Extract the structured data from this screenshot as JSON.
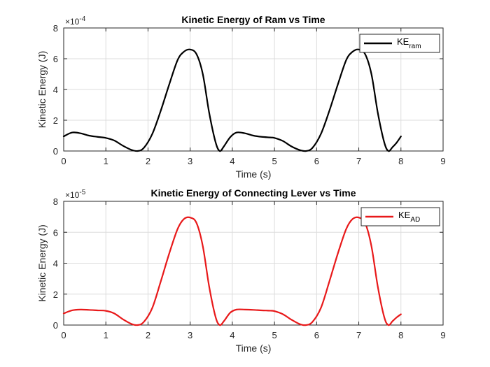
{
  "chart_data": [
    {
      "type": "line",
      "title": "Kinetic Energy of Ram vs Time",
      "xlabel": "Time (s)",
      "ylabel": "Kinetic Energy (J)",
      "exponent_label": {
        "base": "×10",
        "power": "-4"
      },
      "xlim": [
        0,
        9
      ],
      "ylim": [
        0,
        8
      ],
      "y_scale": "1e-4",
      "xticks": [
        "0",
        "1",
        "2",
        "3",
        "4",
        "5",
        "6",
        "7",
        "8",
        "9"
      ],
      "yticks": [
        "0",
        "2",
        "4",
        "6",
        "8"
      ],
      "grid": true,
      "legend_position": "top-right",
      "color": "#000000",
      "series": [
        {
          "name": "KE",
          "name_sub": "ram",
          "x": [
            0,
            0.2,
            0.4,
            0.6,
            0.8,
            1.0,
            1.2,
            1.4,
            1.6,
            1.75,
            1.9,
            2.1,
            2.3,
            2.5,
            2.7,
            2.85,
            3.0,
            3.15,
            3.3,
            3.45,
            3.6,
            3.7,
            3.8,
            3.95,
            4.1,
            4.3,
            4.5,
            4.7,
            4.9,
            5.0,
            5.2,
            5.4,
            5.6,
            5.75,
            5.9,
            6.1,
            6.3,
            6.5,
            6.7,
            6.85,
            7.0,
            7.15,
            7.3,
            7.45,
            7.6,
            7.7,
            7.8,
            7.9,
            8.0
          ],
          "values": [
            0.95,
            1.2,
            1.15,
            1.0,
            0.92,
            0.85,
            0.68,
            0.35,
            0.08,
            0.0,
            0.2,
            1.1,
            2.6,
            4.3,
            5.9,
            6.45,
            6.6,
            6.3,
            5.0,
            2.5,
            0.6,
            0.0,
            0.3,
            0.9,
            1.2,
            1.15,
            1.0,
            0.92,
            0.88,
            0.85,
            0.65,
            0.3,
            0.06,
            0.0,
            0.2,
            1.1,
            2.6,
            4.3,
            5.9,
            6.45,
            6.6,
            6.3,
            5.0,
            2.5,
            0.6,
            0.0,
            0.25,
            0.55,
            0.95
          ]
        }
      ]
    },
    {
      "type": "line",
      "title": "Kinetic Energy of Connecting Lever vs Time",
      "xlabel": "Time (s)",
      "ylabel": "Kinetic Energy (J)",
      "exponent_label": {
        "base": "×10",
        "power": "-5"
      },
      "xlim": [
        0,
        9
      ],
      "ylim": [
        0,
        8
      ],
      "y_scale": "1e-5",
      "xticks": [
        "0",
        "1",
        "2",
        "3",
        "4",
        "5",
        "6",
        "7",
        "8",
        "9"
      ],
      "yticks": [
        "0",
        "2",
        "4",
        "6",
        "8"
      ],
      "grid": true,
      "legend_position": "top-right",
      "color": "#e8191a",
      "series": [
        {
          "name": "KE",
          "name_sub": "AD",
          "x": [
            0,
            0.2,
            0.4,
            0.6,
            0.8,
            1.0,
            1.2,
            1.4,
            1.6,
            1.75,
            1.9,
            2.1,
            2.3,
            2.5,
            2.7,
            2.85,
            3.0,
            3.15,
            3.3,
            3.45,
            3.6,
            3.7,
            3.8,
            3.95,
            4.1,
            4.3,
            4.5,
            4.7,
            4.9,
            5.0,
            5.2,
            5.4,
            5.6,
            5.75,
            5.9,
            6.1,
            6.3,
            6.5,
            6.7,
            6.85,
            7.0,
            7.15,
            7.3,
            7.45,
            7.6,
            7.7,
            7.8,
            7.9,
            8.0
          ],
          "values": [
            0.75,
            0.95,
            1.0,
            0.98,
            0.95,
            0.92,
            0.75,
            0.38,
            0.08,
            0.0,
            0.2,
            1.1,
            2.8,
            4.6,
            6.2,
            6.85,
            6.95,
            6.6,
            5.1,
            2.5,
            0.55,
            0.0,
            0.25,
            0.8,
            1.0,
            1.0,
            0.98,
            0.95,
            0.93,
            0.9,
            0.7,
            0.35,
            0.06,
            0.0,
            0.2,
            1.1,
            2.8,
            4.6,
            6.2,
            6.85,
            6.95,
            6.6,
            5.1,
            2.5,
            0.55,
            0.0,
            0.25,
            0.5,
            0.7
          ]
        }
      ]
    }
  ]
}
